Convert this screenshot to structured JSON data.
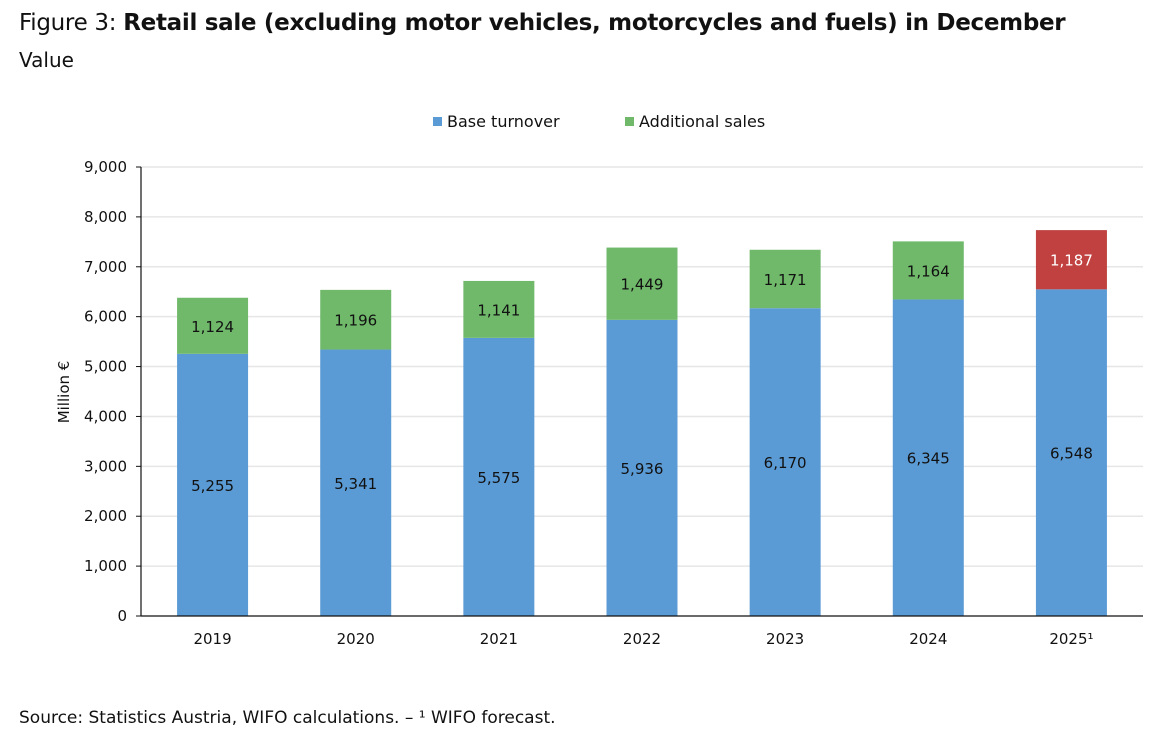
{
  "header": {
    "figure_prefix": "Figure 3: ",
    "title": "Retail sale (excluding motor vehicles, motorcycles and fuels) in December",
    "subtitle": "Value"
  },
  "footer": {
    "source": "Source: Statistics Austria, WIFO calculations. – ¹ WIFO forecast."
  },
  "chart_data": {
    "type": "bar",
    "stacked": true,
    "title": "Retail sale (excluding motor vehicles, motorcycles and fuels) in December",
    "subtitle": "Value",
    "xlabel": "",
    "ylabel": "Million €",
    "ylim": [
      0,
      9000
    ],
    "yticks": [
      0,
      1000,
      2000,
      3000,
      4000,
      5000,
      6000,
      7000,
      8000,
      9000
    ],
    "ytick_labels": [
      "0",
      "1,000",
      "2,000",
      "3,000",
      "4,000",
      "5,000",
      "6,000",
      "7,000",
      "8,000",
      "9,000"
    ],
    "grid": true,
    "legend_position": "top-center",
    "categories": [
      "2019",
      "2020",
      "2021",
      "2022",
      "2023",
      "2024",
      "2025¹"
    ],
    "series": [
      {
        "name": "Base turnover",
        "color": "#5B9BD5",
        "values": [
          5255,
          5341,
          5575,
          5936,
          6170,
          6345,
          6548
        ],
        "labels": [
          "5,255",
          "5,341",
          "5,575",
          "5,936",
          "6,170",
          "6,345",
          "6,548"
        ],
        "label_color": "#111111"
      },
      {
        "name": "Additional sales",
        "color": "#70B96B",
        "values": [
          1124,
          1196,
          1141,
          1449,
          1171,
          1164,
          1187
        ],
        "labels": [
          "1,124",
          "1,196",
          "1,141",
          "1,449",
          "1,171",
          "1,164",
          "1,187"
        ],
        "label_color": "#111111",
        "highlight": {
          "index": 6,
          "color": "#C0413F",
          "label_color": "#FFFFFF",
          "note": "WIFO forecast"
        }
      }
    ]
  }
}
